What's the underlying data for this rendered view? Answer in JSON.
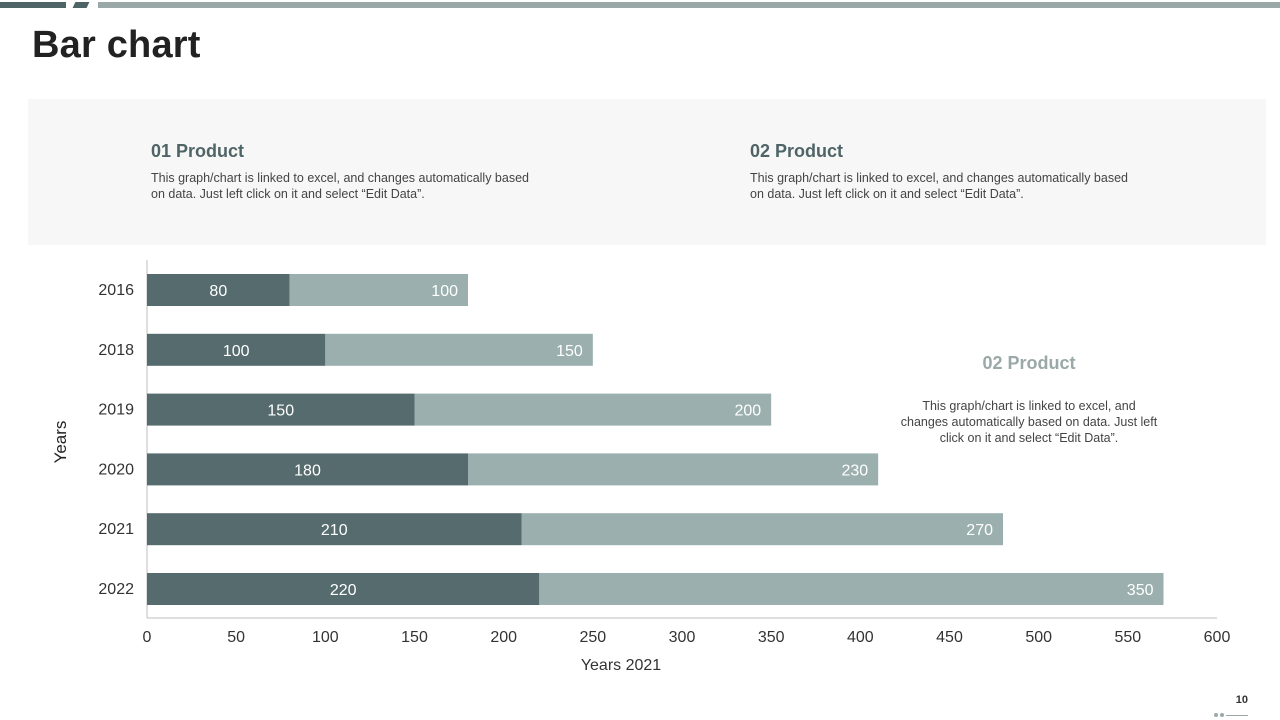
{
  "page": {
    "title": "Bar chart",
    "number": "10"
  },
  "info": [
    {
      "heading": "01 Product",
      "text": "This graph/chart is linked to excel, and changes automatically based on data. Just left click on it and select “Edit Data”."
    },
    {
      "heading": "02 Product",
      "text": "This graph/chart is linked to excel, and changes automatically based on data. Just left click on it and select “Edit Data”."
    }
  ],
  "side_note": {
    "heading": "02 Product",
    "text": "This graph/chart is linked to excel, and changes automatically based on data. Just left click on it and select “Edit Data”."
  },
  "colors": {
    "series1": "#566b6e",
    "series2": "#9aafae",
    "axis": "#bfbfbf"
  },
  "chart_data": {
    "type": "bar",
    "orientation": "horizontal",
    "stacked": true,
    "categories": [
      "2016",
      "2018",
      "2019",
      "2020",
      "2021",
      "2022"
    ],
    "series": [
      {
        "values": [
          80,
          100,
          150,
          180,
          210,
          220
        ]
      },
      {
        "values": [
          100,
          150,
          200,
          230,
          270,
          350
        ]
      }
    ],
    "xlabel": "Years 2021",
    "ylabel": "Years",
    "xlim": [
      0,
      600
    ],
    "xticks": [
      0,
      50,
      100,
      150,
      200,
      250,
      300,
      350,
      400,
      450,
      500,
      550,
      600
    ],
    "grid": false,
    "legend": "none",
    "data_labels": true
  }
}
